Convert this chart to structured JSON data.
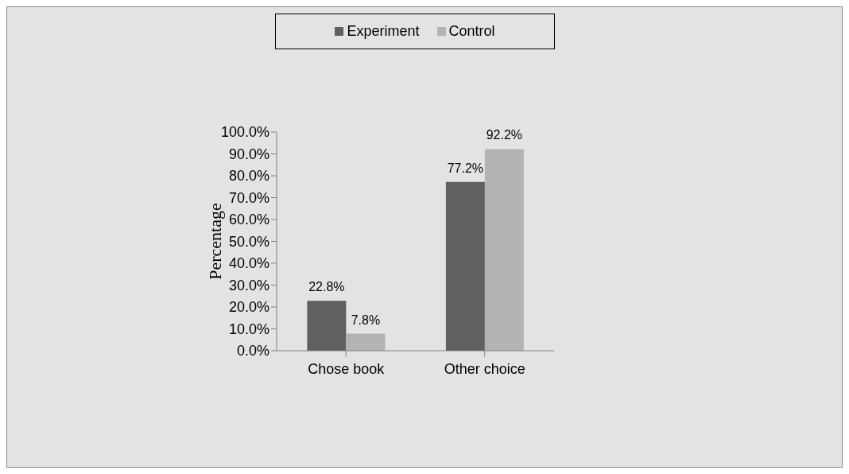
{
  "chart_data": {
    "type": "bar",
    "ylabel": "Percentage",
    "categories": [
      "Chose book",
      "Other choice"
    ],
    "series": [
      {
        "name": "Experiment",
        "color": "#606060",
        "values": [
          22.8,
          77.2
        ],
        "value_labels": [
          "22.8%",
          "77.2%"
        ]
      },
      {
        "name": "Control",
        "color": "#b3b3b3",
        "values": [
          7.8,
          92.2
        ],
        "value_labels": [
          "7.8%",
          "92.2%"
        ]
      }
    ],
    "ylim": [
      0,
      100
    ],
    "yticks": [
      {
        "value": 0,
        "label": "0.0%"
      },
      {
        "value": 10,
        "label": "10.0%"
      },
      {
        "value": 20,
        "label": "20.0%"
      },
      {
        "value": 30,
        "label": "30.0%"
      },
      {
        "value": 40,
        "label": "40.0%"
      },
      {
        "value": 50,
        "label": "50.0%"
      },
      {
        "value": 60,
        "label": "60.0%"
      },
      {
        "value": 70,
        "label": "70.0%"
      },
      {
        "value": 80,
        "label": "80.0%"
      },
      {
        "value": 90,
        "label": "90.0%"
      },
      {
        "value": 100,
        "label": "100.0%"
      }
    ],
    "grid": false,
    "legend": "top"
  }
}
